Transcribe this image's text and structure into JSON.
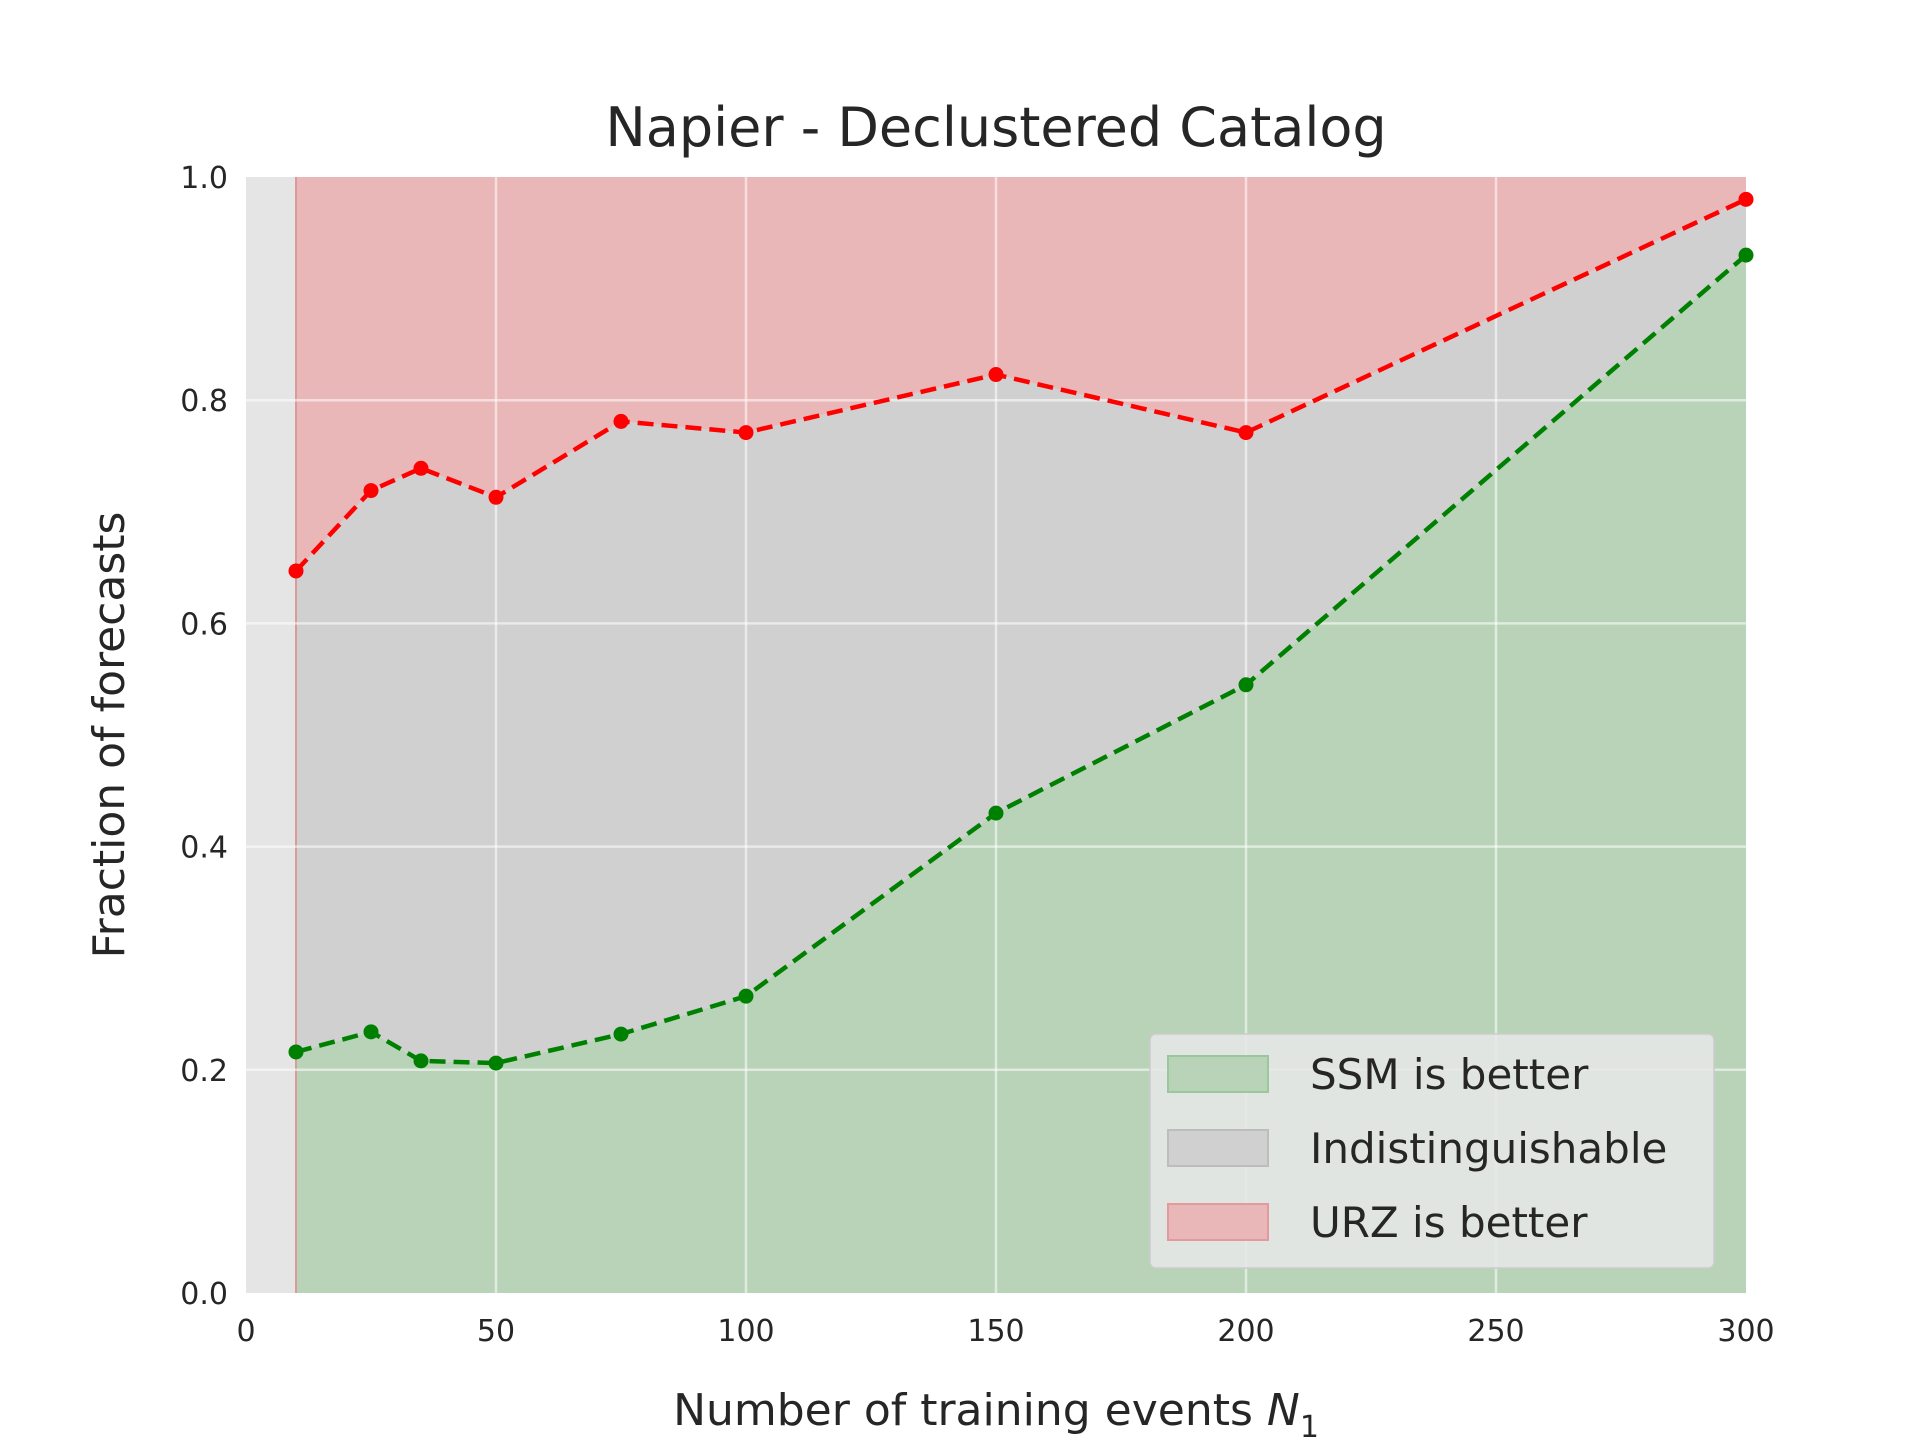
{
  "chart_data": {
    "type": "area",
    "title": "Napier - Declustered Catalog",
    "xlabel": "Number of training events",
    "xlabel_symbol": "N",
    "xlabel_subscript": "1",
    "ylabel": "Fraction of forecasts",
    "xlim": [
      0,
      300
    ],
    "ylim": [
      0,
      1
    ],
    "xticks": [
      "0",
      "50",
      "100",
      "150",
      "200",
      "250",
      "300"
    ],
    "yticks": [
      "0.0",
      "0.2",
      "0.4",
      "0.6",
      "0.8",
      "1.0"
    ],
    "grid": true,
    "legend_position": "lower-right",
    "x": [
      10,
      25,
      35,
      50,
      75,
      100,
      150,
      200,
      300
    ],
    "lower_boundary": [
      0.216,
      0.234,
      0.208,
      0.206,
      0.232,
      0.266,
      0.43,
      0.545,
      0.93
    ],
    "upper_boundary": [
      0.647,
      0.719,
      0.739,
      0.713,
      0.781,
      0.771,
      0.823,
      0.771,
      0.98
    ],
    "regions": [
      {
        "name": "SSM is better",
        "fill": "#b9d3b9",
        "line": "#008000"
      },
      {
        "name": "Indistinguishable",
        "fill": "#d0d0d0",
        "line": "#c2c2c2"
      },
      {
        "name": "URZ is better",
        "fill": "#eab7b9",
        "line": "#ff0000"
      }
    ],
    "background": "#e5e5e5"
  }
}
